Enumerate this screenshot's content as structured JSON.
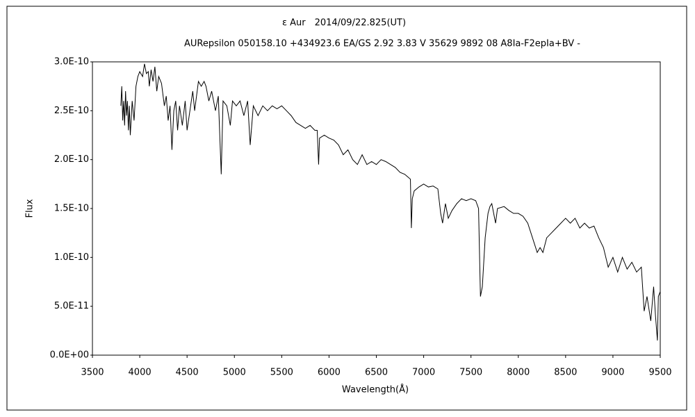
{
  "chart_data": {
    "type": "line",
    "title": "ε Aur　2014/09/22.825(UT)",
    "subtitle": "AURepsilon 050158.10 +434923.6 EA/GS 2.92 3.83 V 35629 9892 08 A8Ia-F2epIa+BV -",
    "x_label": "Wavelength(Å)",
    "y_label": "Flux",
    "xlim": [
      3500,
      9500
    ],
    "xticks": [
      3500,
      4000,
      4500,
      5000,
      5500,
      6000,
      6500,
      7000,
      7500,
      8000,
      8500,
      9000,
      9500
    ],
    "ylim": [
      0,
      3e-10
    ],
    "yticks": [
      {
        "value": 0,
        "label": "0.0E+00"
      },
      {
        "value": 5e-11,
        "label": "5.0E-11"
      },
      {
        "value": 1e-10,
        "label": "1.0E-10"
      },
      {
        "value": 1.5e-10,
        "label": "1.5E-10"
      },
      {
        "value": 2e-10,
        "label": "2.0E-10"
      },
      {
        "value": 2.5e-10,
        "label": "2.5E-10"
      },
      {
        "value": 3e-10,
        "label": "3.0E-10"
      }
    ],
    "grid": false,
    "x": [
      3800,
      3810,
      3820,
      3830,
      3840,
      3850,
      3860,
      3870,
      3880,
      3890,
      3900,
      3920,
      3940,
      3960,
      3980,
      4000,
      4030,
      4050,
      4070,
      4090,
      4101,
      4120,
      4140,
      4160,
      4180,
      4200,
      4230,
      4260,
      4280,
      4300,
      4320,
      4340,
      4360,
      4380,
      4400,
      4420,
      4450,
      4480,
      4500,
      4530,
      4560,
      4580,
      4600,
      4620,
      4650,
      4680,
      4700,
      4730,
      4760,
      4800,
      4830,
      4861,
      4880,
      4920,
      4957,
      4980,
      5020,
      5060,
      5100,
      5140,
      5167,
      5200,
      5250,
      5300,
      5350,
      5400,
      5450,
      5500,
      5550,
      5600,
      5650,
      5700,
      5750,
      5800,
      5850,
      5875,
      5890,
      5900,
      5950,
      6000,
      6050,
      6100,
      6150,
      6200,
      6250,
      6300,
      6350,
      6400,
      6450,
      6500,
      6550,
      6600,
      6650,
      6700,
      6750,
      6800,
      6860,
      6870,
      6880,
      6900,
      6950,
      7000,
      7050,
      7100,
      7150,
      7180,
      7200,
      7230,
      7260,
      7300,
      7350,
      7400,
      7450,
      7500,
      7550,
      7580,
      7600,
      7620,
      7650,
      7680,
      7700,
      7720,
      7760,
      7780,
      7850,
      7900,
      7950,
      8000,
      8050,
      8100,
      8150,
      8200,
      8230,
      8260,
      8300,
      8350,
      8400,
      8450,
      8500,
      8550,
      8600,
      8650,
      8700,
      8750,
      8800,
      8850,
      8900,
      8950,
      9000,
      9050,
      9100,
      9150,
      9200,
      9250,
      9300,
      9330,
      9360,
      9400,
      9430,
      9450,
      9470,
      9480,
      9500
    ],
    "series": [
      {
        "color": "#000000",
        "values": [
          2.55e-10,
          2.75e-10,
          2.4e-10,
          2.6e-10,
          2.35e-10,
          2.7e-10,
          2.45e-10,
          2.6e-10,
          2.3e-10,
          2.55e-10,
          2.25e-10,
          2.6e-10,
          2.4e-10,
          2.75e-10,
          2.85e-10,
          2.9e-10,
          2.85e-10,
          2.98e-10,
          2.88e-10,
          2.9e-10,
          2.75e-10,
          2.92e-10,
          2.8e-10,
          2.95e-10,
          2.7e-10,
          2.85e-10,
          2.78e-10,
          2.55e-10,
          2.65e-10,
          2.4e-10,
          2.55e-10,
          2.1e-10,
          2.5e-10,
          2.6e-10,
          2.3e-10,
          2.55e-10,
          2.35e-10,
          2.6e-10,
          2.3e-10,
          2.5e-10,
          2.7e-10,
          2.5e-10,
          2.65e-10,
          2.8e-10,
          2.75e-10,
          2.8e-10,
          2.75e-10,
          2.6e-10,
          2.7e-10,
          2.5e-10,
          2.65e-10,
          1.85e-10,
          2.6e-10,
          2.55e-10,
          2.35e-10,
          2.6e-10,
          2.55e-10,
          2.6e-10,
          2.45e-10,
          2.6e-10,
          2.15e-10,
          2.55e-10,
          2.45e-10,
          2.55e-10,
          2.5e-10,
          2.55e-10,
          2.52e-10,
          2.55e-10,
          2.5e-10,
          2.45e-10,
          2.38e-10,
          2.35e-10,
          2.32e-10,
          2.35e-10,
          2.3e-10,
          2.3e-10,
          1.95e-10,
          2.22e-10,
          2.25e-10,
          2.22e-10,
          2.2e-10,
          2.15e-10,
          2.05e-10,
          2.1e-10,
          2e-10,
          1.95e-10,
          2.05e-10,
          1.95e-10,
          1.98e-10,
          1.95e-10,
          2e-10,
          1.98e-10,
          1.95e-10,
          1.92e-10,
          1.87e-10,
          1.85e-10,
          1.8e-10,
          1.3e-10,
          1.6e-10,
          1.68e-10,
          1.72e-10,
          1.75e-10,
          1.72e-10,
          1.73e-10,
          1.7e-10,
          1.45e-10,
          1.35e-10,
          1.55e-10,
          1.4e-10,
          1.48e-10,
          1.55e-10,
          1.6e-10,
          1.58e-10,
          1.6e-10,
          1.58e-10,
          1.5e-10,
          6e-11,
          7e-11,
          1.2e-10,
          1.45e-10,
          1.52e-10,
          1.55e-10,
          1.35e-10,
          1.5e-10,
          1.52e-10,
          1.48e-10,
          1.45e-10,
          1.45e-10,
          1.42e-10,
          1.35e-10,
          1.2e-10,
          1.05e-10,
          1.1e-10,
          1.05e-10,
          1.2e-10,
          1.25e-10,
          1.3e-10,
          1.35e-10,
          1.4e-10,
          1.35e-10,
          1.4e-10,
          1.3e-10,
          1.35e-10,
          1.3e-10,
          1.32e-10,
          1.2e-10,
          1.1e-10,
          9e-11,
          1e-10,
          8.5e-11,
          1e-10,
          8.8e-11,
          9.5e-11,
          8.5e-11,
          9e-11,
          4.5e-11,
          6e-11,
          3.5e-11,
          7e-11,
          4e-11,
          1.5e-11,
          6e-11,
          6.5e-11
        ]
      }
    ]
  }
}
